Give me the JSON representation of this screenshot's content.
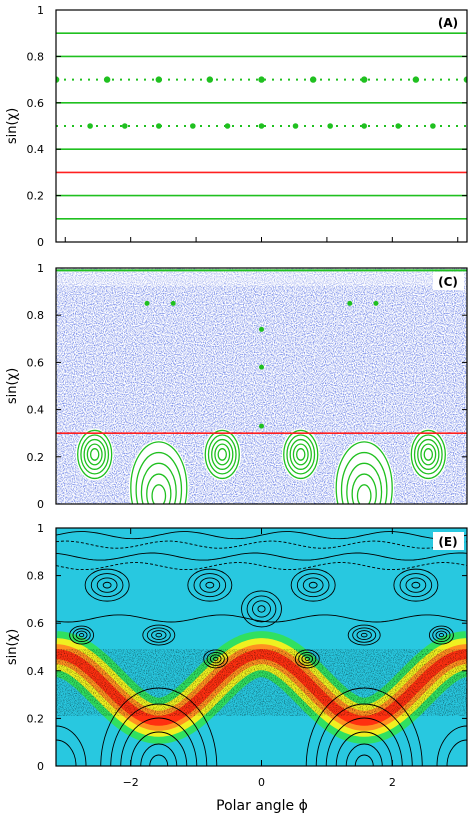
{
  "figure": {
    "xlabel": "Polar angle ϕ"
  },
  "chart_data": [
    {
      "type": "scatter",
      "panel_label": "(A)",
      "ylabel": "sin(χ)",
      "xlim": [
        -3.14159,
        3.14159
      ],
      "ylim": [
        0,
        1
      ],
      "yticks": [
        0,
        0.2,
        0.4,
        0.6,
        0.8,
        1
      ],
      "ytick_labels": [
        "0",
        "0.2",
        "0.4",
        "0.6",
        "0.8",
        "1"
      ],
      "grid": false,
      "lines": [
        {
          "y": 0.9,
          "style": "solid",
          "color": "#20c020"
        },
        {
          "y": 0.8,
          "style": "solid",
          "color": "#20c020"
        },
        {
          "y": 0.7,
          "style": "dotted",
          "color": "#20c020"
        },
        {
          "y": 0.6,
          "style": "solid",
          "color": "#20c020"
        },
        {
          "y": 0.5,
          "style": "dotted",
          "color": "#20c020"
        },
        {
          "y": 0.4,
          "style": "solid",
          "color": "#20c020"
        },
        {
          "y": 0.3,
          "style": "solid",
          "color": "#ff2020"
        },
        {
          "y": 0.2,
          "style": "solid",
          "color": "#20c020"
        },
        {
          "y": 0.1,
          "style": "solid",
          "color": "#20c020"
        }
      ],
      "markers_at_y07_x": [
        -3.14,
        -2.36,
        -1.57,
        -0.79,
        0,
        0.79,
        1.57,
        2.36,
        3.14
      ],
      "markers_at_y05_x": [
        -2.62,
        -2.09,
        -1.57,
        -1.05,
        -0.52,
        0,
        0.52,
        1.05,
        1.57,
        2.09,
        2.62
      ],
      "marker_color": "#20c020"
    },
    {
      "type": "scatter",
      "panel_label": "(C)",
      "ylabel": "sin(χ)",
      "xlim": [
        -3.14159,
        3.14159
      ],
      "ylim": [
        0,
        1
      ],
      "yticks": [
        0,
        0.2,
        0.4,
        0.6,
        0.8,
        1
      ],
      "ytick_labels": [
        "0",
        "0.2",
        "0.4",
        "0.6",
        "0.8",
        "1"
      ],
      "chaotic_sea_color": "#2030c8",
      "island_color": "#20c020",
      "separatrix_y": 0.3,
      "separatrix_color": "#ff2020",
      "island_centers": [
        {
          "x": -2.55,
          "y": 0.21
        },
        {
          "x": -0.6,
          "y": 0.21
        },
        {
          "x": 0.6,
          "y": 0.21
        },
        {
          "x": 2.55,
          "y": 0.21
        },
        {
          "x": -1.57,
          "y": 0.06
        },
        {
          "x": 1.57,
          "y": 0.06
        }
      ]
    },
    {
      "type": "heatmap",
      "panel_label": "(E)",
      "ylabel": "sin(χ)",
      "xlim": [
        -3.14159,
        3.14159
      ],
      "ylim": [
        0,
        1
      ],
      "xticks": [
        -2,
        0,
        2
      ],
      "xtick_labels": [
        "−2",
        "0",
        "2"
      ],
      "yticks": [
        0,
        0.2,
        0.4,
        0.6,
        0.8,
        1
      ],
      "ytick_labels": [
        "0",
        "0.2",
        "0.4",
        "0.6",
        "0.8",
        "1"
      ],
      "background_color": "#28c8e0",
      "hot_band_colors": [
        "#30e060",
        "#f0f020",
        "#ff9020",
        "#ff3010"
      ],
      "contour_color": "#000000"
    }
  ]
}
